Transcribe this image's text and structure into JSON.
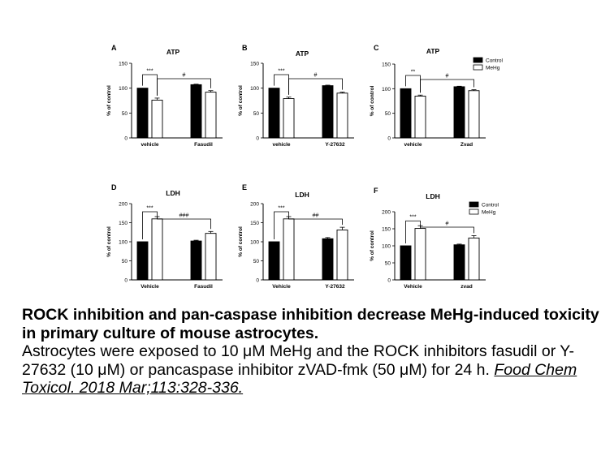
{
  "chart_data": [
    {
      "type": "bar",
      "panel_label": "A",
      "title": "ATP",
      "ylabel": "% of control",
      "ylim": [
        0,
        150
      ],
      "yticks": [
        0,
        50,
        100,
        150
      ],
      "categories": [
        "vehicle",
        "Fasudil"
      ],
      "series": [
        {
          "values": [
            100,
            76
          ],
          "errors": [
            0,
            4
          ]
        },
        {
          "values": [
            107,
            92
          ],
          "errors": [
            1,
            3
          ]
        }
      ],
      "annotations": [
        {
          "text": "***",
          "from": 0,
          "to": 1
        },
        {
          "text": "#",
          "from": 1,
          "to": 3
        }
      ]
    },
    {
      "type": "bar",
      "panel_label": "B",
      "title": "ATP",
      "ylabel": "% of control",
      "ylim": [
        0,
        150
      ],
      "yticks": [
        0,
        50,
        100,
        150
      ],
      "categories": [
        "vehicle",
        "Y-27632"
      ],
      "series": [
        {
          "values": [
            100,
            79
          ],
          "errors": [
            0,
            3
          ]
        },
        {
          "values": [
            105,
            90
          ],
          "errors": [
            1,
            2
          ]
        }
      ],
      "annotations": [
        {
          "text": "***",
          "from": 0,
          "to": 1
        },
        {
          "text": "#",
          "from": 1,
          "to": 3
        }
      ]
    },
    {
      "type": "bar",
      "panel_label": "C",
      "title": "ATP",
      "ylabel": "% of control",
      "ylim": [
        0,
        150
      ],
      "yticks": [
        0,
        50,
        100,
        150
      ],
      "categories": [
        "vehicle",
        "Zvad"
      ],
      "series": [
        {
          "values": [
            100,
            85
          ],
          "errors": [
            0,
            2
          ]
        },
        {
          "values": [
            104,
            96
          ],
          "errors": [
            1,
            2
          ]
        }
      ],
      "annotations": [
        {
          "text": "**",
          "from": 0,
          "to": 1
        },
        {
          "text": "#",
          "from": 1,
          "to": 3
        }
      ],
      "legend": {
        "entries": [
          "Control",
          "MeHg"
        ],
        "position": "top-right"
      }
    },
    {
      "type": "bar",
      "panel_label": "D",
      "title": "LDH",
      "ylabel": "% of control",
      "ylim": [
        0,
        200
      ],
      "yticks": [
        0,
        50,
        100,
        150,
        200
      ],
      "categories": [
        "Vehicle",
        "Fasudil"
      ],
      "series": [
        {
          "values": [
            100,
            160
          ],
          "errors": [
            0,
            6
          ]
        },
        {
          "values": [
            102,
            122
          ],
          "errors": [
            2,
            5
          ]
        }
      ],
      "annotations": [
        {
          "text": "***",
          "from": 0,
          "to": 1
        },
        {
          "text": "###",
          "from": 1,
          "to": 3
        }
      ]
    },
    {
      "type": "bar",
      "panel_label": "E",
      "title": "LDH",
      "ylabel": "% of control",
      "ylim": [
        0,
        200
      ],
      "yticks": [
        0,
        50,
        100,
        150,
        200
      ],
      "categories": [
        "Vehicle",
        "Y-27632"
      ],
      "series": [
        {
          "values": [
            100,
            160
          ],
          "errors": [
            0,
            6
          ]
        },
        {
          "values": [
            108,
            131
          ],
          "errors": [
            3,
            7
          ]
        }
      ],
      "annotations": [
        {
          "text": "***",
          "from": 0,
          "to": 1
        },
        {
          "text": "##",
          "from": 1,
          "to": 3
        }
      ]
    },
    {
      "type": "bar",
      "panel_label": "F",
      "title": "LDH",
      "ylabel": "% of control",
      "ylim": [
        0,
        200
      ],
      "yticks": [
        0,
        50,
        100,
        150,
        200
      ],
      "categories": [
        "Vehicle",
        "zvad"
      ],
      "series": [
        {
          "values": [
            100,
            151
          ],
          "errors": [
            0,
            8
          ]
        },
        {
          "values": [
            103,
            123
          ],
          "errors": [
            2,
            7
          ]
        }
      ],
      "annotations": [
        {
          "text": "***",
          "from": 0,
          "to": 1
        },
        {
          "text": "#",
          "from": 1,
          "to": 3
        }
      ],
      "legend": {
        "entries": [
          "Control",
          "MeHg"
        ],
        "position": "top-right"
      }
    }
  ],
  "colors": {
    "control": "#000000",
    "mehg": "#ffffff",
    "axis": "#000000"
  },
  "caption": {
    "bold_text": "ROCK inhibition and pan-caspase inhibition decrease MeHg-induced toxicity in primary culture of mouse astrocytes.",
    "body_text": "Astrocytes were exposed to 10 μM MeHg and the ROCK inhibitors fasudil or Y-27632 (10 μM) or pancaspase inhibitor zVAD-fmk (50 μM) for 24 h.",
    "citation": "Food Chem Toxicol. 2018 Mar;113:328-336."
  }
}
